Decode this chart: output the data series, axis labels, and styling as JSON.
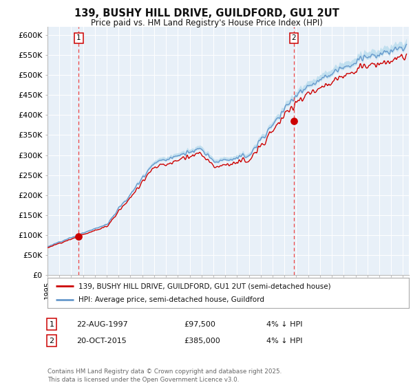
{
  "title": "139, BUSHY HILL DRIVE, GUILDFORD, GU1 2UT",
  "subtitle": "Price paid vs. HM Land Registry's House Price Index (HPI)",
  "xlim_start": 1995.0,
  "xlim_end": 2025.5,
  "ylim_min": 0,
  "ylim_max": 620000,
  "yticks": [
    0,
    50000,
    100000,
    150000,
    200000,
    250000,
    300000,
    350000,
    400000,
    450000,
    500000,
    550000,
    600000
  ],
  "ytick_labels": [
    "£0",
    "£50K",
    "£100K",
    "£150K",
    "£200K",
    "£250K",
    "£300K",
    "£350K",
    "£400K",
    "£450K",
    "£500K",
    "£550K",
    "£600K"
  ],
  "purchase1_date": 1997.64,
  "purchase1_price": 97500,
  "purchase1_label": "1",
  "purchase2_date": 2015.8,
  "purchase2_price": 385000,
  "purchase2_label": "2",
  "property_line_color": "#cc0000",
  "hpi_line_color": "#6699cc",
  "hpi_fill_color": "#bbddee",
  "vline_color": "#ee4444",
  "dot_color": "#cc0000",
  "legend_text1": "139, BUSHY HILL DRIVE, GUILDFORD, GU1 2UT (semi-detached house)",
  "legend_text2": "HPI: Average price, semi-detached house, Guildford",
  "table_row1": [
    "1",
    "22-AUG-1997",
    "£97,500",
    "4% ↓ HPI"
  ],
  "table_row2": [
    "2",
    "20-OCT-2015",
    "£385,000",
    "4% ↓ HPI"
  ],
  "footer": "Contains HM Land Registry data © Crown copyright and database right 2025.\nThis data is licensed under the Open Government Licence v3.0.",
  "bg_color": "#ffffff",
  "plot_bg_color": "#e8f0f8"
}
